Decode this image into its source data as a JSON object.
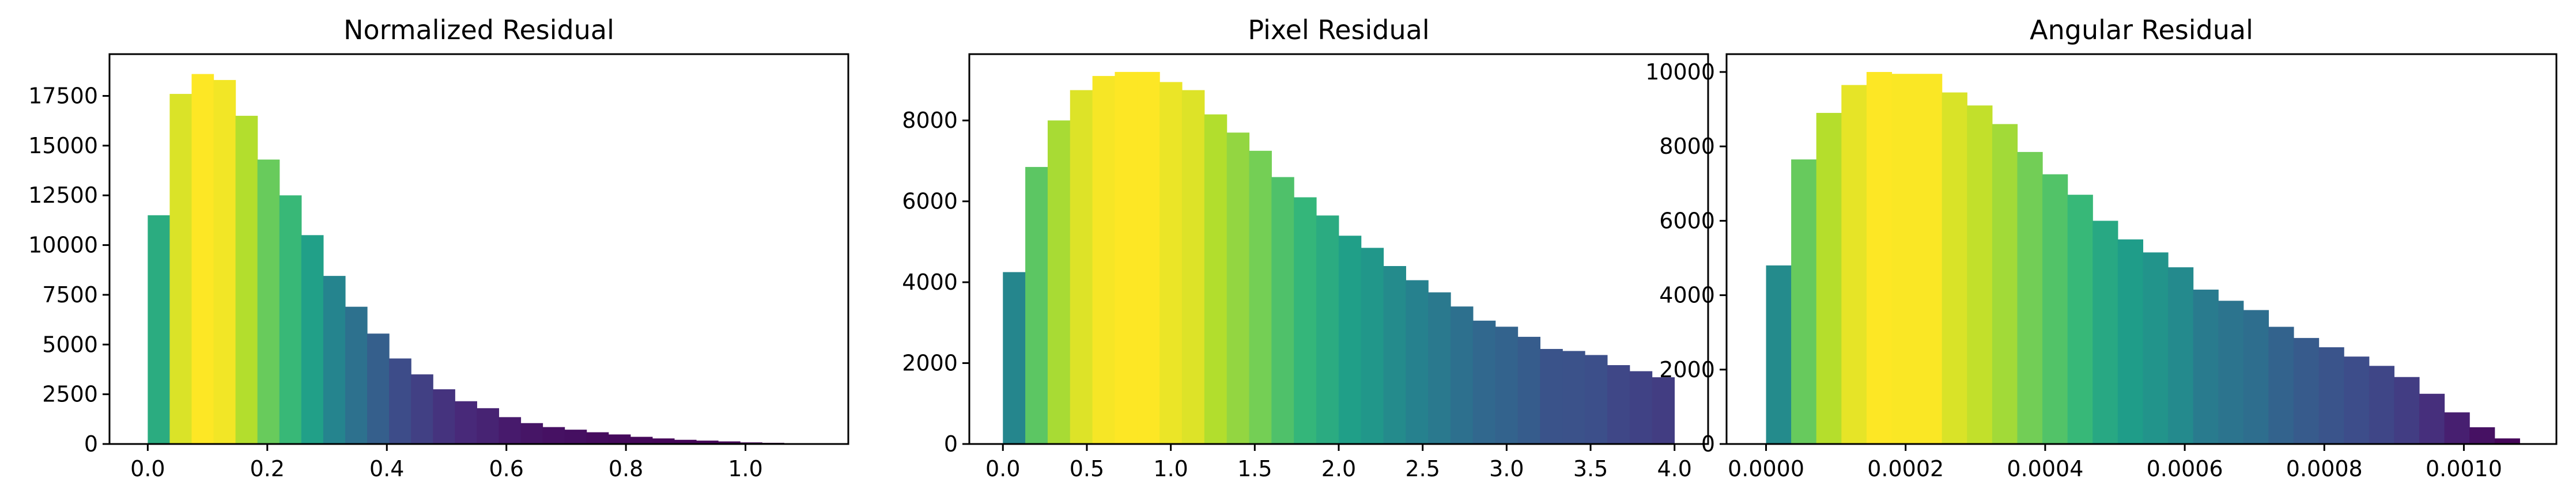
{
  "chart_data": [
    {
      "type": "bar",
      "title": "Normalized Residual",
      "xlabel": "",
      "ylabel": "",
      "xlim": [
        -0.064,
        1.172
      ],
      "ylim": [
        0,
        19600
      ],
      "xticks": [
        0.0,
        0.2,
        0.4,
        0.6,
        0.8,
        1.0
      ],
      "xtick_labels": [
        "0.0",
        "0.2",
        "0.4",
        "0.6",
        "0.8",
        "1.0"
      ],
      "yticks": [
        0,
        2500,
        5000,
        7500,
        10000,
        12500,
        15000,
        17500
      ],
      "ytick_labels": [
        "0",
        "2500",
        "5000",
        "7500",
        "10000",
        "12500",
        "15000",
        "17500"
      ],
      "grid": false,
      "bin_start": 0.0,
      "bin_width": 0.0367,
      "values": [
        11500,
        17600,
        18600,
        18300,
        16500,
        14300,
        12500,
        10500,
        8450,
        6900,
        5550,
        4300,
        3500,
        2750,
        2150,
        1800,
        1350,
        1050,
        850,
        720,
        590,
        480,
        360,
        280,
        210,
        170,
        130,
        80,
        60,
        40,
        20
      ]
    },
    {
      "type": "bar",
      "title": "Pixel Residual",
      "xlabel": "",
      "ylabel": "",
      "xlim": [
        -0.2,
        4.2
      ],
      "ylim": [
        0,
        9640
      ],
      "xticks": [
        0.0,
        0.5,
        1.0,
        1.5,
        2.0,
        2.5,
        3.0,
        3.5,
        4.0
      ],
      "xtick_labels": [
        "0.0",
        "0.5",
        "1.0",
        "1.5",
        "2.0",
        "2.5",
        "3.0",
        "3.5",
        "4.0"
      ],
      "yticks": [
        0,
        2000,
        4000,
        6000,
        8000
      ],
      "ytick_labels": [
        "0",
        "2000",
        "4000",
        "6000",
        "8000"
      ],
      "grid": false,
      "bin_start": 0.0,
      "bin_width": 0.1333,
      "values": [
        4250,
        6850,
        8000,
        8750,
        9100,
        9200,
        9200,
        8950,
        8750,
        8150,
        7700,
        7250,
        6600,
        6100,
        5650,
        5150,
        4850,
        4400,
        4050,
        3750,
        3400,
        3050,
        2900,
        2650,
        2350,
        2300,
        2200,
        1950,
        1800,
        1650
      ]
    },
    {
      "type": "bar",
      "title": "Angular Residual",
      "xlabel": "",
      "ylabel": "",
      "xlim": [
        -5.66e-05,
        0.0011326
      ],
      "ylim": [
        0,
        10480
      ],
      "xticks": [
        0.0,
        0.0002,
        0.0004,
        0.0006,
        0.0008,
        0.001
      ],
      "xtick_labels": [
        "0.0000",
        "0.0002",
        "0.0004",
        "0.0006",
        "0.0008",
        "0.0010"
      ],
      "yticks": [
        0,
        2000,
        4000,
        6000,
        8000,
        10000
      ],
      "ytick_labels": [
        "0",
        "2000",
        "4000",
        "6000",
        "8000",
        "10000"
      ],
      "grid": false,
      "bin_start": 0.0,
      "bin_width": 3.6e-05,
      "values": [
        4800,
        7650,
        8900,
        9650,
        10000,
        9950,
        9950,
        9450,
        9100,
        8600,
        7850,
        7250,
        6700,
        6000,
        5500,
        5150,
        4750,
        4150,
        3850,
        3600,
        3150,
        2850,
        2600,
        2350,
        2100,
        1800,
        1350,
        850,
        450,
        150
      ]
    }
  ]
}
